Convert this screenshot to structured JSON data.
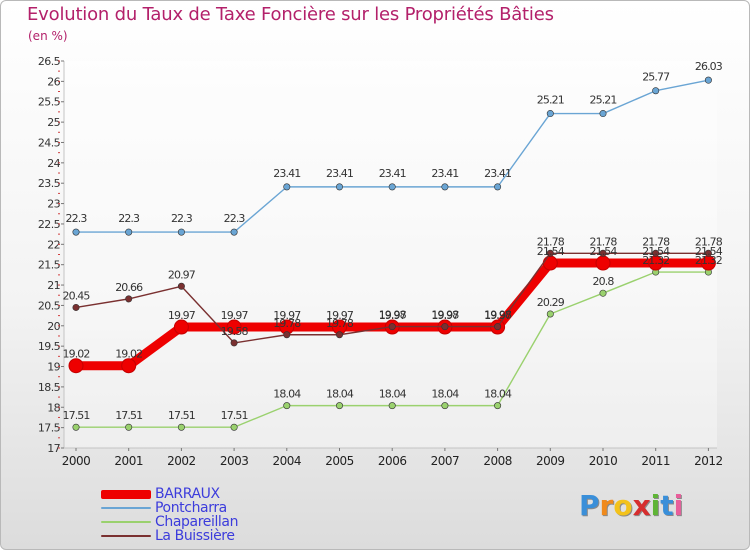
{
  "chart_data": {
    "type": "line",
    "title": "Evolution du Taux de Taxe Foncière sur les Propriétés Bâties",
    "subtitle": "(en %)",
    "xlabel": "",
    "ylabel": "",
    "categories": [
      "2000",
      "2001",
      "2002",
      "2003",
      "2004",
      "2005",
      "2006",
      "2007",
      "2008",
      "2009",
      "2010",
      "2011",
      "2012"
    ],
    "ylim": [
      17,
      26.5
    ],
    "yticks": [
      "17",
      "17.5",
      "18",
      "18.5",
      "19",
      "19.5",
      "20",
      "20.5",
      "21",
      "21.5",
      "22",
      "22.5",
      "23",
      "23.5",
      "24",
      "24.5",
      "25",
      "25.5",
      "26",
      "26.5"
    ],
    "grid": false,
    "legend_position": "bottom-left",
    "series": [
      {
        "name": "BARRAUX",
        "color": "#ee0000",
        "emphasis": "thick",
        "values": [
          19.02,
          19.02,
          19.97,
          19.97,
          19.97,
          19.97,
          19.97,
          19.97,
          19.97,
          21.54,
          21.54,
          21.54,
          21.54
        ],
        "labels": [
          "19.02",
          "19.02",
          "19.97",
          "19.97",
          "19.97",
          "19.97",
          "19.97",
          "19.97",
          "19.97",
          "21.54",
          "21.54",
          "21.54",
          "21.54"
        ]
      },
      {
        "name": "Pontcharra",
        "color": "#6aa5d4",
        "emphasis": "normal",
        "values": [
          22.3,
          22.3,
          22.3,
          22.3,
          23.41,
          23.41,
          23.41,
          23.41,
          23.41,
          25.21,
          25.21,
          25.77,
          26.03
        ],
        "labels": [
          "22.3",
          "22.3",
          "22.3",
          "22.3",
          "23.41",
          "23.41",
          "23.41",
          "23.41",
          "23.41",
          "25.21",
          "25.21",
          "25.77",
          "26.03"
        ]
      },
      {
        "name": "Chapareillan",
        "color": "#9ad16e",
        "emphasis": "normal",
        "values": [
          17.51,
          17.51,
          17.51,
          17.51,
          18.04,
          18.04,
          18.04,
          18.04,
          18.04,
          20.29,
          20.8,
          21.32,
          21.32
        ],
        "labels": [
          "17.51",
          "17.51",
          "17.51",
          "17.51",
          "18.04",
          "18.04",
          "18.04",
          "18.04",
          "18.04",
          "20.29",
          "20.8",
          "21.32",
          "21.32"
        ]
      },
      {
        "name": "La Buissière",
        "color": "#7a3030",
        "emphasis": "normal",
        "values": [
          20.45,
          20.66,
          20.97,
          19.58,
          19.78,
          19.78,
          19.98,
          19.98,
          19.98,
          21.78,
          21.78,
          21.78,
          21.78
        ],
        "labels": [
          "20.45",
          "20.66",
          "20.97",
          "19.58",
          "19.78",
          "19.78",
          "19.98",
          "19.98",
          "19.98",
          "21.78",
          "21.78",
          "21.78",
          "21.78"
        ]
      }
    ]
  },
  "logo": {
    "letters": [
      "P",
      "r",
      "o",
      "x",
      "i",
      "t",
      "i"
    ],
    "colors": [
      "#3a8fd9",
      "#f08a1c",
      "#f3c21b",
      "#d62e2e",
      "#5fb536",
      "#3a8fd9",
      "#e85e9b"
    ]
  }
}
